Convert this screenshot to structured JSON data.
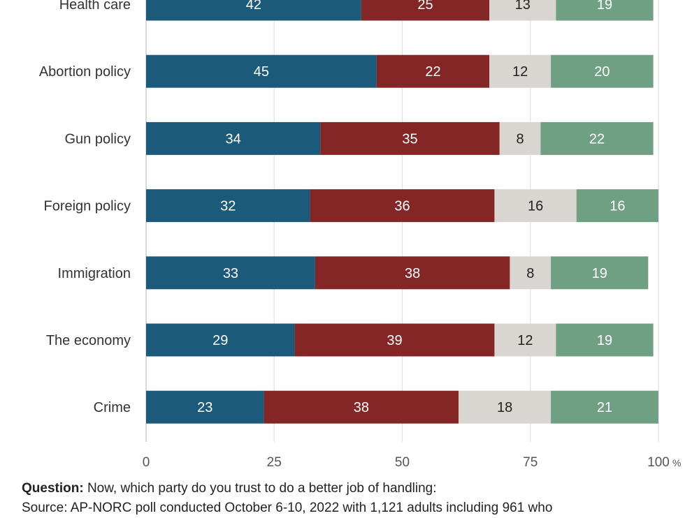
{
  "chart_data": {
    "type": "bar",
    "orientation": "horizontal",
    "stacked": true,
    "categories": [
      "Health care",
      "Abortion policy",
      "Gun policy",
      "Foreign policy",
      "Immigration",
      "The economy",
      "Crime"
    ],
    "series": [
      {
        "values": [
          42,
          45,
          34,
          32,
          33,
          29,
          23
        ],
        "color": "#1b5a7a",
        "label_color": "#ffffff"
      },
      {
        "values": [
          25,
          22,
          35,
          36,
          38,
          39,
          38
        ],
        "color": "#852626",
        "label_color": "#ffffff"
      },
      {
        "values": [
          13,
          12,
          8,
          16,
          8,
          12,
          18
        ],
        "color": "#d9d5d0",
        "label_color": "#222222"
      },
      {
        "values": [
          19,
          20,
          22,
          16,
          19,
          19,
          21
        ],
        "color": "#6fa083",
        "label_color": "#ffffff"
      }
    ],
    "xlim": [
      0,
      100
    ],
    "xticks": [
      "0",
      "25",
      "50",
      "75",
      "100"
    ],
    "x_unit": "%",
    "grid": true
  },
  "footer": {
    "question_label": "Question:",
    "question_text": "Now, which party do you trust to do a better job of handling:",
    "source_fragment": "Source: AP-NORC poll conducted October 6-10, 2022 with 1,121 adults including 961 who"
  }
}
